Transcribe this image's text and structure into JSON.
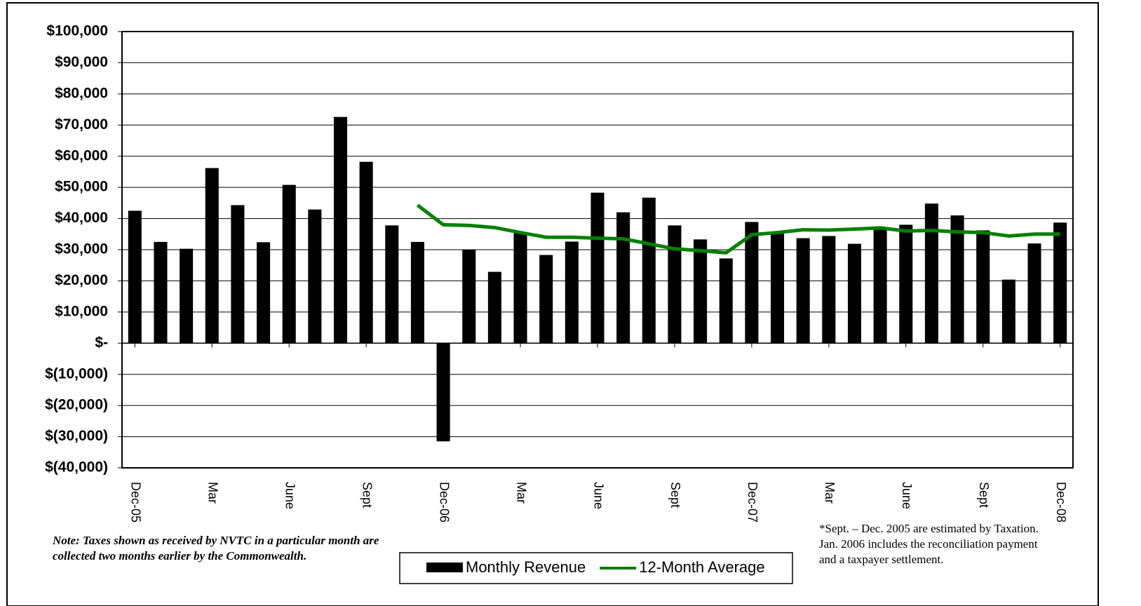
{
  "chart_data": {
    "type": "bar",
    "categories": [
      "Dec-05",
      null,
      null,
      "Mar",
      null,
      null,
      "June",
      null,
      null,
      "Sept",
      null,
      null,
      "Dec-06",
      null,
      null,
      "Mar",
      null,
      null,
      "June",
      null,
      null,
      "Sept",
      null,
      null,
      "Dec-07",
      null,
      null,
      "Mar",
      null,
      null,
      "June",
      null,
      null,
      "Sept",
      null,
      null,
      "Dec-08"
    ],
    "series": [
      {
        "name": "Monthly Revenue",
        "color": "#000000",
        "type": "bar",
        "values": [
          42500,
          32500,
          30300,
          56200,
          44300,
          32400,
          50800,
          42900,
          72600,
          58200,
          37800,
          32500,
          -31500,
          29900,
          22900,
          35300,
          28300,
          32600,
          48300,
          42000,
          46700,
          37800,
          33300,
          27200,
          38900,
          35700,
          33700,
          34400,
          31900,
          36600,
          38000,
          44800,
          41000,
          36200,
          20400,
          32000,
          38700
        ]
      },
      {
        "name": "12-Month Average",
        "color": "#008000",
        "type": "line",
        "values": [
          null,
          null,
          null,
          null,
          null,
          null,
          null,
          null,
          null,
          null,
          null,
          44300,
          38000,
          37800,
          37100,
          35500,
          34000,
          34000,
          33700,
          33500,
          31900,
          30300,
          29700,
          29000,
          34800,
          35500,
          36400,
          36300,
          36600,
          37000,
          36000,
          36200,
          35700,
          35500,
          34400,
          35000,
          35000
        ]
      }
    ],
    "ylim": [
      -40000,
      100000
    ],
    "yticks": [
      {
        "value": -40000,
        "label": "$(40,000)"
      },
      {
        "value": -30000,
        "label": "$(30,000)"
      },
      {
        "value": -20000,
        "label": "$(20,000)"
      },
      {
        "value": -10000,
        "label": "$(10,000)"
      },
      {
        "value": 0,
        "label": "$-"
      },
      {
        "value": 10000,
        "label": "$10,000"
      },
      {
        "value": 20000,
        "label": "$20,000"
      },
      {
        "value": 30000,
        "label": "$30,000"
      },
      {
        "value": 40000,
        "label": "$40,000"
      },
      {
        "value": 50000,
        "label": "$50,000"
      },
      {
        "value": 60000,
        "label": "$60,000"
      },
      {
        "value": 70000,
        "label": "$70,000"
      },
      {
        "value": 80000,
        "label": "$80,000"
      },
      {
        "value": 90000,
        "label": "$90,000"
      },
      {
        "value": 100000,
        "label": "$100,000"
      }
    ],
    "grid": true,
    "legend": "bottom",
    "annotations": [
      "Note: Taxes shown as received by NVTC in a particular month are collected two months earlier by the Commonwealth.",
      "*Sept. – Dec. 2005 are estimated by Taxation.  Jan. 2006 includes the reconciliation payment and a taxpayer settlement."
    ]
  }
}
